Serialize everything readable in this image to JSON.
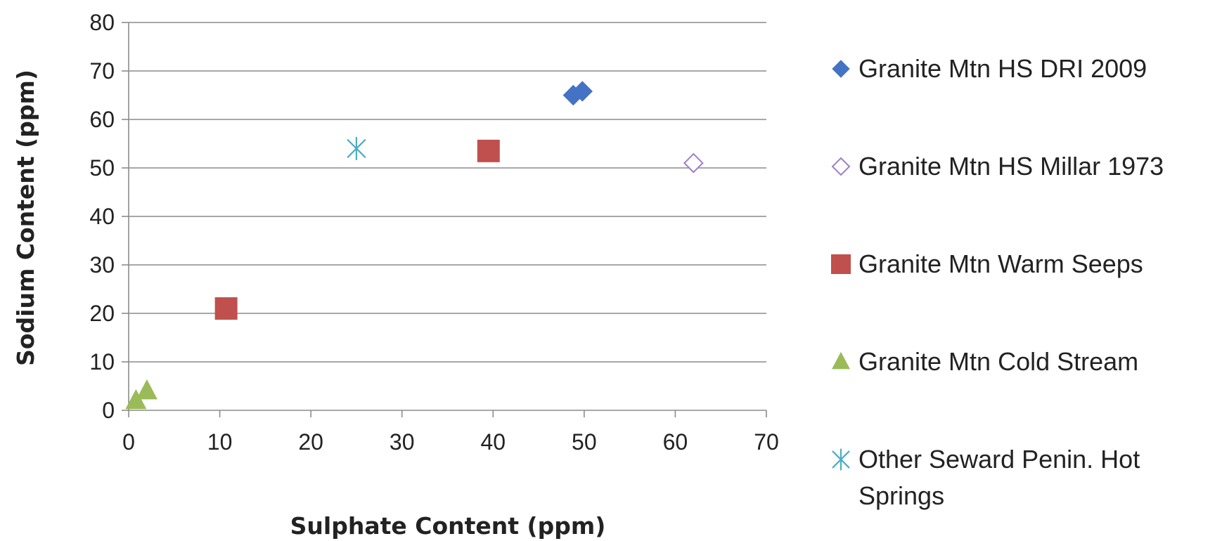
{
  "chart_data": {
    "type": "scatter",
    "title": "",
    "xlabel": "Sulphate Content (ppm)",
    "ylabel": "Sodium Content (ppm)",
    "xlim": [
      0,
      70
    ],
    "ylim": [
      0,
      80
    ],
    "x_ticks": [
      "0",
      "10",
      "20",
      "30",
      "40",
      "50",
      "60",
      "70"
    ],
    "y_ticks": [
      "0",
      "10",
      "20",
      "30",
      "40",
      "50",
      "60",
      "70",
      "80"
    ],
    "grid": "horizontal",
    "legend_position": "right",
    "series": [
      {
        "name": "Granite Mtn HS DRI 2009",
        "marker": "diamond-filled",
        "color": "#4472C4",
        "points": [
          {
            "x": 48.8,
            "y": 65
          },
          {
            "x": 49.8,
            "y": 65.8
          }
        ]
      },
      {
        "name": "Granite Mtn HS Millar 1973",
        "marker": "diamond-open",
        "color": "#9E7FCC",
        "points": [
          {
            "x": 62,
            "y": 51
          }
        ]
      },
      {
        "name": "Granite Mtn Warm Seeps",
        "marker": "square",
        "color": "#C0504D",
        "points": [
          {
            "x": 10.7,
            "y": 21
          },
          {
            "x": 39.5,
            "y": 53.5
          }
        ]
      },
      {
        "name": "Granite Mtn Cold Stream",
        "marker": "triangle",
        "color": "#9BBB59",
        "points": [
          {
            "x": 0.8,
            "y": 2
          },
          {
            "x": 2,
            "y": 4
          }
        ]
      },
      {
        "name": "Other Seward Penin. Hot Springs",
        "name_lines": [
          "Other Seward Penin. Hot",
          "Springs"
        ],
        "marker": "star",
        "color": "#4BACC6",
        "points": [
          {
            "x": 25,
            "y": 54
          }
        ]
      }
    ]
  }
}
